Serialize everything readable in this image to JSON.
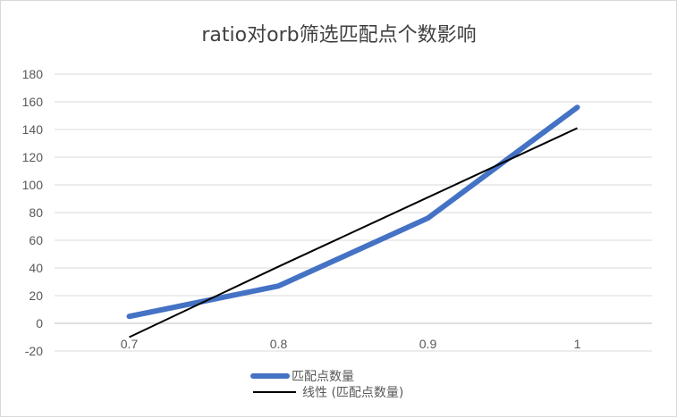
{
  "chart_data": {
    "type": "line",
    "title": "ratio对orb筛选匹配点个数影响",
    "categories": [
      "0.7",
      "0.8",
      "0.9",
      "1"
    ],
    "series": [
      {
        "name": "匹配点数量",
        "values": [
          5,
          27,
          76,
          156
        ],
        "color": "#4472c4"
      }
    ],
    "trendline": {
      "name": "线性 (匹配点数量)",
      "type": "linear",
      "values": [
        -10,
        41,
        91,
        141
      ],
      "color": "#000000"
    },
    "ylim": [
      -20,
      180
    ],
    "yticks": [
      -20,
      0,
      20,
      40,
      60,
      80,
      100,
      120,
      140,
      160,
      180
    ],
    "grid": true,
    "legend_position": "bottom",
    "xlabel": "",
    "ylabel": ""
  }
}
